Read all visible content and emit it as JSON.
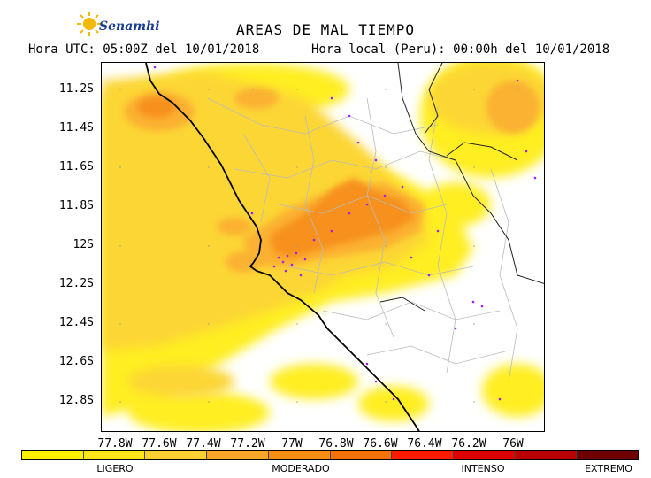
{
  "header": {
    "logo_text": "Senamhi",
    "title": "AREAS DE MAL TIEMPO",
    "utc_time": "Hora UTC: 05:00Z del 10/01/2018",
    "local_time": "Hora local (Peru): 00:00h del 10/01/2018"
  },
  "map": {
    "latitude_labels": [
      "11.2S",
      "11.4S",
      "11.6S",
      "11.8S",
      "12S",
      "12.2S",
      "12.4S",
      "12.6S",
      "12.8S"
    ],
    "longitude_labels": [
      "77.8W",
      "77.6W",
      "77.4W",
      "77.2W",
      "77W",
      "76.8W",
      "76.6W",
      "76.4W",
      "76.2W",
      "76W"
    ],
    "colors": {
      "ligero_light": "#ffee22",
      "ligero": "#fcd634",
      "moderado_light": "#fbb133",
      "moderado": "#f7901c",
      "coastline": "#000000",
      "districts": "#bbbbbb",
      "stations": "#a020f0"
    }
  },
  "legend": {
    "labels": [
      "LIGERO",
      "MODERADO",
      "INTENSO",
      "EXTREMO"
    ],
    "colors": [
      "#ffef00",
      "#fde61a",
      "#fbd030",
      "#f7a628",
      "#f78d14",
      "#f57208",
      "#ff1a00",
      "#df0000",
      "#b80000",
      "#700000"
    ]
  }
}
